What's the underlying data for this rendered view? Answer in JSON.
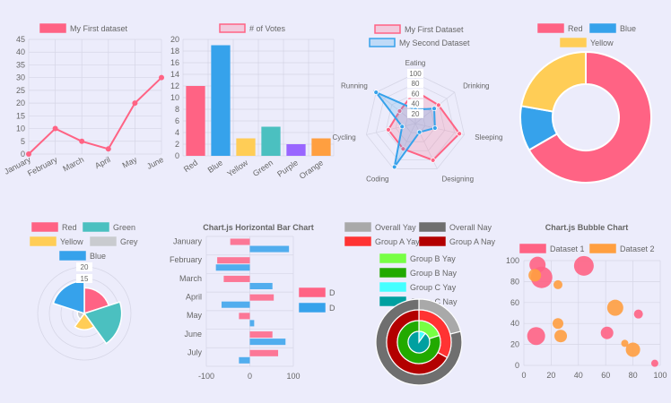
{
  "colors": {
    "red": "#ff6384",
    "blue": "#36a2eb",
    "yellow": "#ffcd56",
    "green": "#4bc0c0",
    "purple": "#9966ff",
    "orange": "#ff9f40",
    "grey": "#c9cbcf",
    "text": "#666666",
    "grid": "#d6d6e6"
  },
  "chart_data": [
    {
      "id": "line",
      "type": "line",
      "legend": [
        "My First dataset"
      ],
      "categories": [
        "January",
        "February",
        "March",
        "April",
        "May",
        "June"
      ],
      "series": [
        {
          "name": "My First dataset",
          "values": [
            0,
            10,
            5,
            2,
            20,
            30
          ]
        }
      ],
      "ylim": [
        0,
        45
      ],
      "yticks": [
        "45",
        "40",
        "35",
        "30",
        "25",
        "20",
        "15",
        "10",
        "5",
        "0"
      ]
    },
    {
      "id": "bar",
      "type": "bar",
      "legend": [
        "# of Votes"
      ],
      "categories": [
        "Red",
        "Blue",
        "Yellow",
        "Green",
        "Purple",
        "Orange"
      ],
      "values": [
        12,
        19,
        3,
        5,
        2,
        3
      ],
      "ylim": [
        0,
        20
      ],
      "yticks": [
        "20",
        "18",
        "16",
        "14",
        "12",
        "10",
        "8",
        "6",
        "4",
        "2",
        "0"
      ]
    },
    {
      "id": "radar",
      "type": "radar",
      "legend": [
        "My First Dataset",
        "My Second Dataset"
      ],
      "labels": [
        "Eating",
        "Drinking",
        "Sleeping",
        "Designing",
        "Coding",
        "Cycling",
        "Running"
      ],
      "series": [
        {
          "name": "My First Dataset",
          "values": [
            65,
            59,
            90,
            81,
            56,
            55,
            40
          ]
        },
        {
          "name": "My Second Dataset",
          "values": [
            28,
            48,
            40,
            19,
            96,
            27,
            100
          ]
        }
      ],
      "rlim": [
        0,
        100
      ],
      "ticks": [
        "100",
        "80",
        "60",
        "40",
        "20"
      ]
    },
    {
      "id": "doughnut",
      "type": "pie",
      "legend": [
        "Red",
        "Blue",
        "Yellow"
      ],
      "labels": [
        "Red",
        "Blue",
        "Yellow"
      ],
      "values": [
        300,
        50,
        100
      ]
    },
    {
      "id": "polar",
      "type": "polarArea",
      "legend": [
        "Red",
        "Green",
        "Yellow",
        "Grey",
        "Blue"
      ],
      "labels": [
        "Red",
        "Green",
        "Yellow",
        "Grey",
        "Blue"
      ],
      "values": [
        11,
        16,
        7,
        3,
        14
      ],
      "rlim": [
        0,
        20
      ],
      "ticks": [
        "20",
        "15"
      ]
    },
    {
      "id": "hbar",
      "type": "bar",
      "orientation": "horizontal",
      "title": "Chart.js Horizontal Bar Chart",
      "legend": [
        "D",
        "D"
      ],
      "categories": [
        "January",
        "February",
        "March",
        "April",
        "May",
        "June",
        "July"
      ],
      "series": [
        {
          "name": "D",
          "values": [
            -45,
            -75,
            -60,
            55,
            -25,
            52,
            65
          ]
        },
        {
          "name": "D",
          "values": [
            90,
            -78,
            52,
            -65,
            10,
            82,
            -25
          ]
        }
      ],
      "xlim": [
        -100,
        100
      ],
      "xticks": [
        "-100",
        "0",
        "100"
      ]
    },
    {
      "id": "multipie",
      "type": "pie",
      "legend": [
        "Overall Yay",
        "Overall Nay",
        "Group A Yay",
        "Group A Nay",
        "Group B Yay",
        "Group B Nay",
        "Group C Yay",
        "Group C Nay"
      ],
      "rings": [
        {
          "name": "Overall",
          "values": [
            21,
            79
          ]
        },
        {
          "name": "Group A",
          "values": [
            33,
            67
          ]
        },
        {
          "name": "Group B",
          "values": [
            20,
            80
          ]
        },
        {
          "name": "Group C",
          "values": [
            10,
            90
          ]
        }
      ]
    },
    {
      "id": "bubble",
      "type": "scatter",
      "title": "Chart.js Bubble Chart",
      "legend": [
        "Dataset 1",
        "Dataset 2"
      ],
      "xlim": [
        0,
        100
      ],
      "ylim": [
        0,
        100
      ],
      "xticks": [
        "0",
        "20",
        "40",
        "60",
        "80",
        "100"
      ],
      "yticks": [
        "100",
        "80",
        "60",
        "40",
        "20",
        "0"
      ],
      "series": [
        {
          "name": "Dataset 1",
          "points": [
            {
              "x": 10,
              "y": 96,
              "r": 9
            },
            {
              "x": 13,
              "y": 84,
              "r": 12
            },
            {
              "x": 44,
              "y": 95,
              "r": 11
            },
            {
              "x": 9,
              "y": 28,
              "r": 10
            },
            {
              "x": 61,
              "y": 31,
              "r": 7
            },
            {
              "x": 84,
              "y": 49,
              "r": 5
            },
            {
              "x": 96,
              "y": 2,
              "r": 4
            }
          ]
        },
        {
          "name": "Dataset 2",
          "points": [
            {
              "x": 8,
              "y": 86,
              "r": 7
            },
            {
              "x": 25,
              "y": 77,
              "r": 5
            },
            {
              "x": 25,
              "y": 40,
              "r": 6
            },
            {
              "x": 27,
              "y": 28,
              "r": 7
            },
            {
              "x": 67,
              "y": 55,
              "r": 9
            },
            {
              "x": 74,
              "y": 21,
              "r": 4
            },
            {
              "x": 80,
              "y": 15,
              "r": 8
            }
          ]
        }
      ]
    }
  ]
}
